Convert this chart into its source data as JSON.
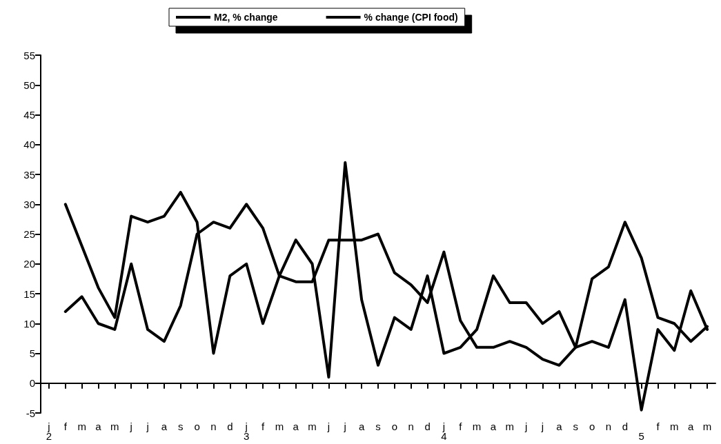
{
  "chart_data": {
    "type": "line",
    "categories": [
      "j",
      "f",
      "m",
      "a",
      "m",
      "j",
      "j",
      "a",
      "s",
      "o",
      "n",
      "d",
      "j",
      "f",
      "m",
      "a",
      "m",
      "j",
      "j",
      "a",
      "s",
      "o",
      "n",
      "d",
      "j",
      "f",
      "m",
      "a",
      "m",
      "j",
      "j",
      "a",
      "s",
      "o",
      "n",
      "d",
      null,
      "f",
      "m",
      "a",
      "m"
    ],
    "series": [
      {
        "name": "M2, % change",
        "color": "#000000",
        "values": [
          null,
          30,
          23,
          16,
          11,
          28,
          27,
          28,
          32,
          27,
          5,
          18,
          20,
          10,
          18,
          24,
          20,
          1,
          37,
          14,
          3,
          11,
          9,
          18,
          5,
          6,
          9,
          18,
          13.5,
          13.5,
          10,
          12,
          6,
          17.5,
          19.5,
          27,
          21,
          11,
          10,
          7,
          9.5
        ]
      },
      {
        "name": "% change (CPI food)",
        "color": "#000000",
        "values": [
          null,
          12,
          14.5,
          10,
          9,
          20,
          9,
          7,
          13,
          25,
          27,
          26,
          30,
          26,
          18,
          17,
          17,
          24,
          24,
          24,
          25,
          18.5,
          16.5,
          13.5,
          22,
          10.5,
          6,
          6,
          7,
          6,
          4,
          3,
          6,
          7,
          6,
          14,
          -4.5,
          9,
          5.5,
          15.5,
          9
        ]
      }
    ],
    "annotations": [
      "2",
      "3",
      "4",
      "5"
    ],
    "ylim": [
      -5,
      55
    ],
    "yticks": [
      -5,
      0,
      5,
      10,
      15,
      20,
      25,
      30,
      35,
      40,
      45,
      50,
      55
    ],
    "legend": "top",
    "marker": "none",
    "line_style": "solid"
  }
}
